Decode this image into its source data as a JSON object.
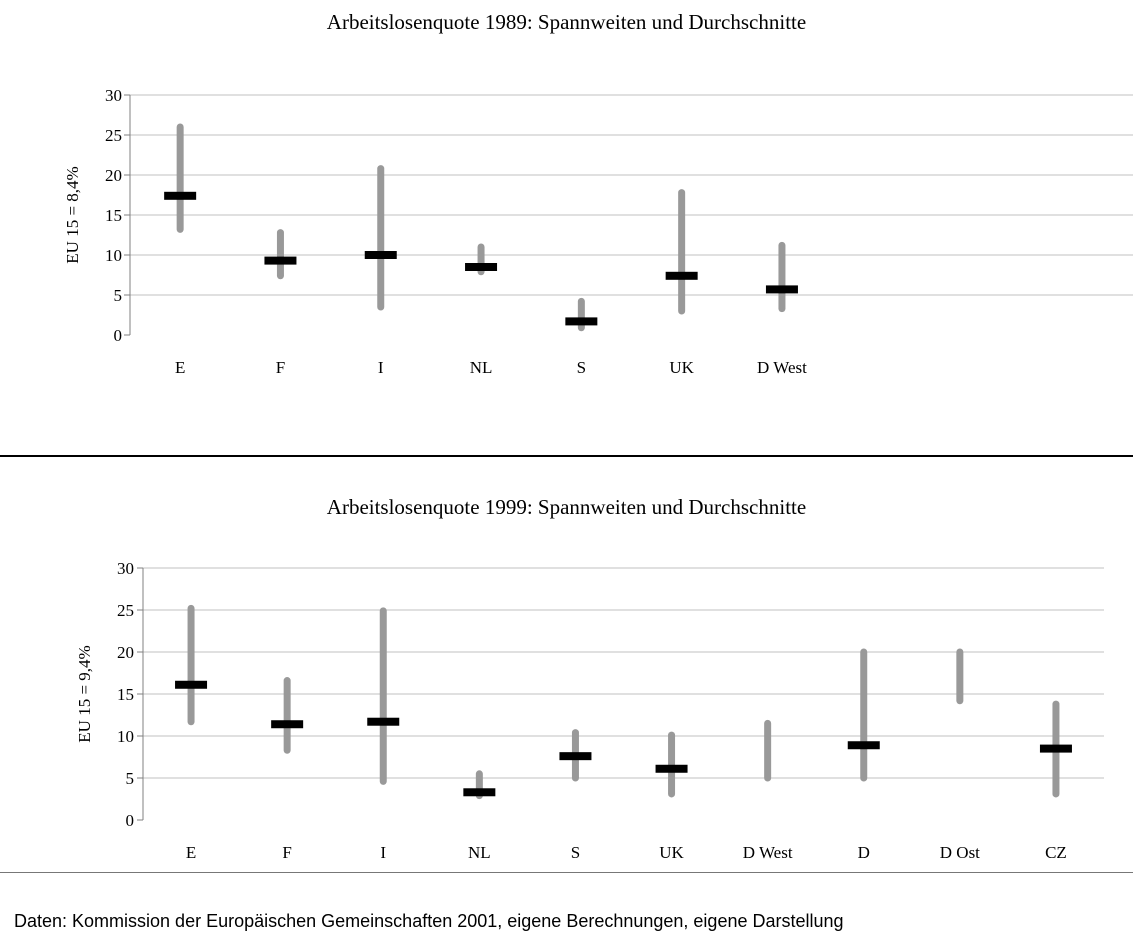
{
  "chart_data": [
    {
      "type": "range",
      "title": "Arbeitslosenquote 1989: Spannweiten und Durchschnitte",
      "ylabel": "EU 15 = 8,4%",
      "ylim": [
        0,
        30
      ],
      "yticks": [
        0,
        5,
        10,
        15,
        20,
        25,
        30
      ],
      "grid": true,
      "categories": [
        "E",
        "F",
        "I",
        "NL",
        "S",
        "UK",
        "D West"
      ],
      "slots": 10,
      "min": [
        13.2,
        7.4,
        3.5,
        7.9,
        0.9,
        3.0,
        3.3
      ],
      "max": [
        26.0,
        12.8,
        20.8,
        11.0,
        4.2,
        17.8,
        11.2
      ],
      "mean": [
        17.4,
        9.3,
        10.0,
        8.5,
        1.7,
        7.4,
        5.7
      ],
      "colors": {
        "range": "#999999",
        "mean": "#000000"
      }
    },
    {
      "type": "range",
      "title": "Arbeitslosenquote 1999: Spannweiten und Durchschnitte",
      "ylabel": "EU 15 = 9,4%",
      "ylim": [
        0,
        30
      ],
      "yticks": [
        0,
        5,
        10,
        15,
        20,
        25,
        30
      ],
      "grid": true,
      "categories": [
        "E",
        "F",
        "I",
        "NL",
        "S",
        "UK",
        "D West",
        "D",
        "D Ost",
        "CZ"
      ],
      "slots": 10,
      "min": [
        11.7,
        8.3,
        4.6,
        2.9,
        5.0,
        3.1,
        5.0,
        5.0,
        14.2,
        3.1
      ],
      "max": [
        25.2,
        16.6,
        24.9,
        5.5,
        10.4,
        10.1,
        11.5,
        20.0,
        20.0,
        13.8
      ],
      "mean": [
        16.1,
        11.4,
        11.7,
        3.3,
        7.6,
        6.1,
        null,
        8.9,
        null,
        8.5
      ],
      "colors": {
        "range": "#999999",
        "mean": "#000000"
      }
    }
  ],
  "footer": {
    "source": "Daten: Kommission der Europäischen Gemeinschaften 2001, eigene Berechnungen, eigene Darstellung"
  }
}
